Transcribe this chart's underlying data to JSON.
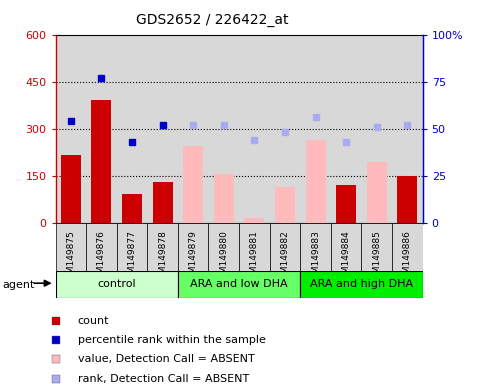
{
  "title": "GDS2652 / 226422_at",
  "samples": [
    "GSM149875",
    "GSM149876",
    "GSM149877",
    "GSM149878",
    "GSM149879",
    "GSM149880",
    "GSM149881",
    "GSM149882",
    "GSM149883",
    "GSM149884",
    "GSM149885",
    "GSM149886"
  ],
  "groups": [
    {
      "label": "control",
      "start": 0,
      "end": 4,
      "color": "#ccffcc"
    },
    {
      "label": "ARA and low DHA",
      "start": 4,
      "end": 8,
      "color": "#66ff66"
    },
    {
      "label": "ARA and high DHA",
      "start": 8,
      "end": 12,
      "color": "#00ee00"
    }
  ],
  "present_bars": [
    {
      "idx": 0,
      "value": 215
    },
    {
      "idx": 1,
      "value": 390
    },
    {
      "idx": 2,
      "value": 90
    },
    {
      "idx": 3,
      "value": 130
    },
    {
      "idx": 9,
      "value": 120
    },
    {
      "idx": 11,
      "value": 150
    }
  ],
  "absent_bars": [
    {
      "idx": 4,
      "value": 245
    },
    {
      "idx": 5,
      "value": 155
    },
    {
      "idx": 6,
      "value": 15
    },
    {
      "idx": 7,
      "value": 115
    },
    {
      "idx": 8,
      "value": 265
    },
    {
      "idx": 10,
      "value": 195
    }
  ],
  "present_ranks": [
    {
      "idx": 0,
      "value": 54
    },
    {
      "idx": 1,
      "value": 77
    },
    {
      "idx": 2,
      "value": 43
    },
    {
      "idx": 3,
      "value": 52
    }
  ],
  "absent_ranks": [
    {
      "idx": 4,
      "value": 52
    },
    {
      "idx": 5,
      "value": 52
    },
    {
      "idx": 6,
      "value": 44
    },
    {
      "idx": 7,
      "value": 48
    },
    {
      "idx": 8,
      "value": 56
    },
    {
      "idx": 9,
      "value": 43
    },
    {
      "idx": 10,
      "value": 51
    },
    {
      "idx": 11,
      "value": 52
    }
  ],
  "ylim_left": [
    0,
    600
  ],
  "ylim_right": [
    0,
    100
  ],
  "yticks_left": [
    0,
    150,
    300,
    450,
    600
  ],
  "yticks_right": [
    0,
    25,
    50,
    75,
    100
  ],
  "ytick_labels_left": [
    "0",
    "150",
    "300",
    "450",
    "600"
  ],
  "ytick_labels_right": [
    "0",
    "25",
    "50",
    "75",
    "100%"
  ],
  "bar_width": 0.65,
  "present_bar_color": "#cc0000",
  "absent_bar_color": "#ffbbbb",
  "present_rank_color": "#0000cc",
  "absent_rank_color": "#aaaaee",
  "left_axis_color": "#cc0000",
  "right_axis_color": "#0000cc",
  "bg_color": "#d8d8d8",
  "agent_label": "agent",
  "legend": [
    {
      "label": "count",
      "color": "#cc0000",
      "type": "square"
    },
    {
      "label": "percentile rank within the sample",
      "color": "#0000cc",
      "type": "square"
    },
    {
      "label": "value, Detection Call = ABSENT",
      "color": "#ffbbbb",
      "type": "square"
    },
    {
      "label": "rank, Detection Call = ABSENT",
      "color": "#aaaaee",
      "type": "square"
    }
  ]
}
